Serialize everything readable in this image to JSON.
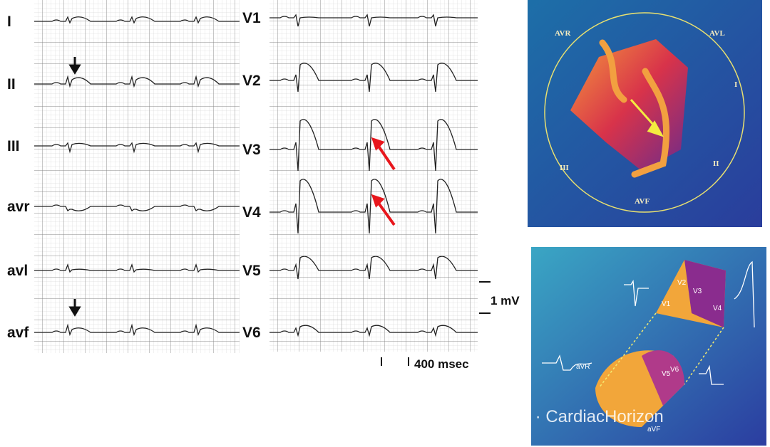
{
  "limb_leads": [
    "I",
    "II",
    "III",
    "avr",
    "avl",
    "avf"
  ],
  "chest_leads": [
    "V1",
    "V2",
    "V3",
    "V4",
    "V5",
    "V6"
  ],
  "calibration": {
    "amplitude": "1 mV",
    "duration": "400 msec"
  },
  "top_illustration": {
    "labels": [
      "AVR",
      "AVL",
      "I",
      "II",
      "III",
      "AVF"
    ]
  },
  "bottom_illustration": {
    "labels": [
      "V1",
      "V2",
      "V3",
      "V4",
      "V5",
      "V6",
      "aVR",
      "aVF"
    ]
  },
  "watermark": "公众号 · CardiacHorizon"
}
